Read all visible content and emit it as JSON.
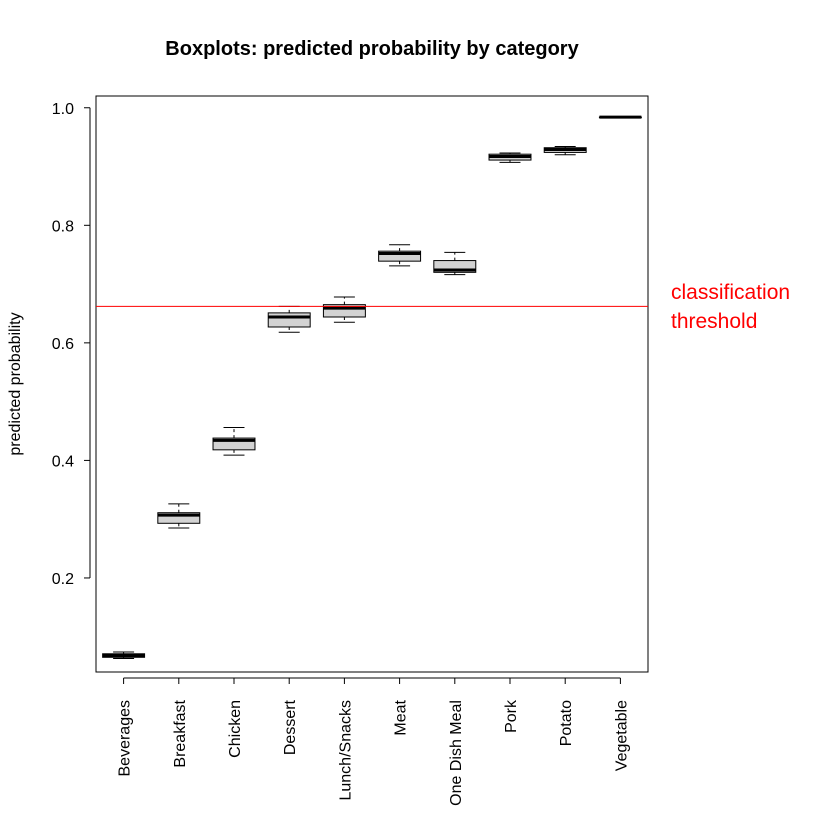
{
  "chart_data": {
    "type": "boxplot",
    "title": "Boxplots: predicted probability by category",
    "xlabel": "",
    "ylabel": "predicted probability",
    "ylim": [
      0.04,
      1.02
    ],
    "yticks": [
      0.2,
      0.4,
      0.6,
      0.8,
      1.0
    ],
    "ytick_labels": [
      "0.2",
      "0.4",
      "0.6",
      "0.8",
      "1.0"
    ],
    "categories": [
      "Beverages",
      "Breakfast",
      "Chicken",
      "Dessert",
      "Lunch/Snacks",
      "Meat",
      "One Dish Meal",
      "Pork",
      "Potato",
      "Vegetable"
    ],
    "boxes": [
      {
        "category": "Beverages",
        "whisker_low": 0.063,
        "q1": 0.065,
        "median": 0.068,
        "q3": 0.071,
        "whisker_high": 0.074
      },
      {
        "category": "Breakfast",
        "whisker_low": 0.285,
        "q1": 0.293,
        "median": 0.307,
        "q3": 0.311,
        "whisker_high": 0.326
      },
      {
        "category": "Chicken",
        "whisker_low": 0.409,
        "q1": 0.418,
        "median": 0.434,
        "q3": 0.438,
        "whisker_high": 0.456
      },
      {
        "category": "Dessert",
        "whisker_low": 0.618,
        "q1": 0.627,
        "median": 0.644,
        "q3": 0.651,
        "whisker_high": 0.662
      },
      {
        "category": "Lunch/Snacks",
        "whisker_low": 0.635,
        "q1": 0.644,
        "median": 0.659,
        "q3": 0.665,
        "whisker_high": 0.678
      },
      {
        "category": "Meat",
        "whisker_low": 0.731,
        "q1": 0.739,
        "median": 0.752,
        "q3": 0.756,
        "whisker_high": 0.767
      },
      {
        "category": "One Dish Meal",
        "whisker_low": 0.716,
        "q1": 0.72,
        "median": 0.724,
        "q3": 0.74,
        "whisker_high": 0.754
      },
      {
        "category": "Pork",
        "whisker_low": 0.907,
        "q1": 0.911,
        "median": 0.917,
        "q3": 0.921,
        "whisker_high": 0.923
      },
      {
        "category": "Potato",
        "whisker_low": 0.92,
        "q1": 0.924,
        "median": 0.929,
        "q3": 0.932,
        "whisker_high": 0.934
      },
      {
        "category": "Vegetable",
        "whisker_low": 0.984,
        "q1": 0.984,
        "median": 0.984,
        "q3": 0.984,
        "whisker_high": 0.984
      }
    ],
    "threshold": {
      "value": 0.662,
      "label_lines": [
        "classification",
        "threshold"
      ],
      "color": "#ff0000"
    },
    "box_fill": "#d3d3d3",
    "grid": false,
    "legend": "none"
  }
}
